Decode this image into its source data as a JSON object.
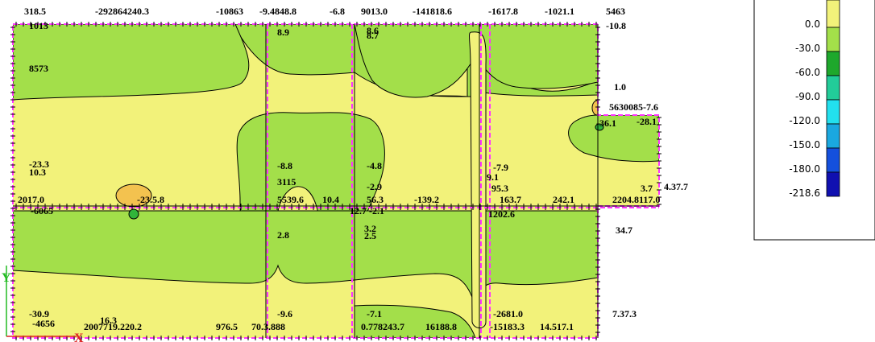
{
  "colors": {
    "yellow": "#f2f27a",
    "lightgreen": "#a3df4a",
    "orange": "#f3c24f",
    "midgreen": "#30b53a",
    "outline": "#ff33ff",
    "line": "#000000",
    "axis_y": "#22bb22",
    "axis_x": "#dd2222"
  },
  "legend": {
    "items": [
      {
        "label": "0.0",
        "color": "#f2f27a"
      },
      {
        "label": "-30.0",
        "color": "#a3df4a"
      },
      {
        "label": "-60.0",
        "color": "#1ea82c"
      },
      {
        "label": "-90.0",
        "color": "#22cc99"
      },
      {
        "label": "-120.0",
        "color": "#22e0ee"
      },
      {
        "label": "-150.0",
        "color": "#1aa8e0"
      },
      {
        "label": "-180.0",
        "color": "#1450dd"
      },
      {
        "label": "-218.6",
        "color": "#1010b0"
      }
    ]
  },
  "labels": [
    {
      "text": "318.5"
    },
    {
      "text": "-292864240.3"
    },
    {
      "text": "-10863"
    },
    {
      "text": "-9.4848.8"
    },
    {
      "text": "-6.8"
    },
    {
      "text": "9013.0"
    },
    {
      "text": "-141818.6"
    },
    {
      "text": "-1617.8"
    },
    {
      "text": "-1021.1"
    },
    {
      "text": "5463"
    },
    {
      "text": "-10.8"
    },
    {
      "text": "1013"
    },
    {
      "text": "8.9"
    },
    {
      "text": "8.6"
    },
    {
      "text": "8.7"
    },
    {
      "text": "8573"
    },
    {
      "text": "1.0"
    },
    {
      "text": "5630085-7.6"
    },
    {
      "text": "-36.1"
    },
    {
      "text": "-28.1"
    },
    {
      "text": "-23.3"
    },
    {
      "text": "10.3"
    },
    {
      "text": "-8.8"
    },
    {
      "text": "-4.8"
    },
    {
      "text": "-7.9"
    },
    {
      "text": "9.1"
    },
    {
      "text": "3115"
    },
    {
      "text": "-2.9"
    },
    {
      "text": "95.3"
    },
    {
      "text": "3.7"
    },
    {
      "text": "4.37.7"
    },
    {
      "text": "2017.0"
    },
    {
      "text": "-23.5.8"
    },
    {
      "text": "5539.6"
    },
    {
      "text": "10.4"
    },
    {
      "text": "56.3"
    },
    {
      "text": "-139.2"
    },
    {
      "text": "163.7"
    },
    {
      "text": "242.1"
    },
    {
      "text": "2204.8117.0"
    },
    {
      "text": "-6065"
    },
    {
      "text": "12.7"
    },
    {
      "text": "-2.1"
    },
    {
      "text": "1202.6"
    },
    {
      "text": "34.7"
    },
    {
      "text": "2.8"
    },
    {
      "text": "3.2"
    },
    {
      "text": "2.5"
    },
    {
      "text": "-30.9"
    },
    {
      "text": "16.3"
    },
    {
      "text": "-9.6"
    },
    {
      "text": "-7.1"
    },
    {
      "text": "-2681.0"
    },
    {
      "text": "7.37.3"
    },
    {
      "text": "-4656"
    },
    {
      "text": "2007719.220.2"
    },
    {
      "text": "976.5"
    },
    {
      "text": "70.3.888"
    },
    {
      "text": "0.778243.7"
    },
    {
      "text": "16188.8"
    },
    {
      "text": "-15183.3"
    },
    {
      "text": "14.517.1"
    }
  ],
  "axes": {
    "y_label": "Y",
    "x_label": "X"
  }
}
